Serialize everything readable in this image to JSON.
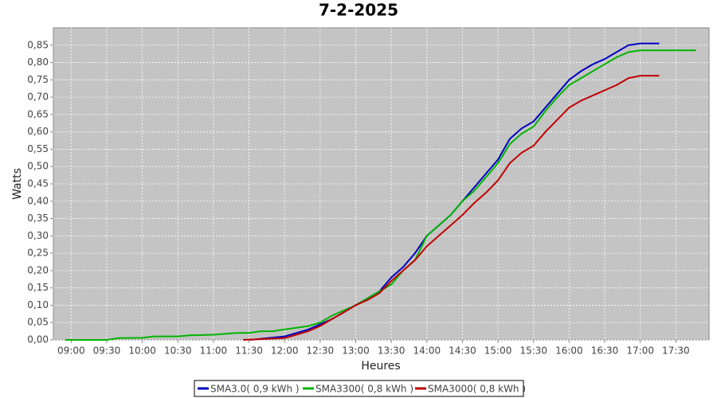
{
  "chart_data": {
    "type": "line",
    "title": "7-2-2025",
    "x_label": "Heures",
    "y_label": "Watts",
    "xlim": [
      525,
      1078
    ],
    "ylim": [
      0,
      0.9
    ],
    "grid": true,
    "legend": "bottom",
    "xticks": [
      {
        "value": 540,
        "label": "09:00"
      },
      {
        "value": 570,
        "label": "09:30"
      },
      {
        "value": 600,
        "label": "10:00"
      },
      {
        "value": 630,
        "label": "10:30"
      },
      {
        "value": 660,
        "label": "11:00"
      },
      {
        "value": 690,
        "label": "11:30"
      },
      {
        "value": 720,
        "label": "12:00"
      },
      {
        "value": 750,
        "label": "12:30"
      },
      {
        "value": 780,
        "label": "13:00"
      },
      {
        "value": 810,
        "label": "13:30"
      },
      {
        "value": 840,
        "label": "14:00"
      },
      {
        "value": 870,
        "label": "14:30"
      },
      {
        "value": 900,
        "label": "15:00"
      },
      {
        "value": 930,
        "label": "15:30"
      },
      {
        "value": 960,
        "label": "16:00"
      },
      {
        "value": 990,
        "label": "16:30"
      },
      {
        "value": 1020,
        "label": "17:00"
      },
      {
        "value": 1050,
        "label": "17:30"
      }
    ],
    "yticks": [
      {
        "value": 0,
        "label": "0,00"
      },
      {
        "value": 0.05,
        "label": "0,05"
      },
      {
        "value": 0.1,
        "label": "0,10"
      },
      {
        "value": 0.15,
        "label": "0,15"
      },
      {
        "value": 0.2,
        "label": "0,20"
      },
      {
        "value": 0.25,
        "label": "0,25"
      },
      {
        "value": 0.3,
        "label": "0,30"
      },
      {
        "value": 0.35,
        "label": "0,35"
      },
      {
        "value": 0.4,
        "label": "0,40"
      },
      {
        "value": 0.45,
        "label": "0,45"
      },
      {
        "value": 0.5,
        "label": "0,50"
      },
      {
        "value": 0.55,
        "label": "0,55"
      },
      {
        "value": 0.6,
        "label": "0,60"
      },
      {
        "value": 0.65,
        "label": "0,65"
      },
      {
        "value": 0.7,
        "label": "0,70"
      },
      {
        "value": 0.75,
        "label": "0,75"
      },
      {
        "value": 0.8,
        "label": "0,80"
      },
      {
        "value": 0.85,
        "label": "0,85"
      }
    ],
    "series": [
      {
        "name": "SMA3.0( 0,9 kWh )",
        "color": "#0000c0",
        "x": [
          691,
          720,
          730,
          740,
          750,
          760,
          770,
          780,
          790,
          800,
          810,
          820,
          830,
          840,
          850,
          860,
          870,
          880,
          890,
          900,
          910,
          920,
          930,
          940,
          950,
          960,
          970,
          980,
          990,
          1000,
          1010,
          1020,
          1036
        ],
        "values": [
          0,
          0.01,
          0.02,
          0.03,
          0.045,
          0.06,
          0.08,
          0.1,
          0.12,
          0.14,
          0.18,
          0.21,
          0.25,
          0.3,
          0.33,
          0.36,
          0.4,
          0.44,
          0.48,
          0.52,
          0.58,
          0.61,
          0.63,
          0.67,
          0.71,
          0.75,
          0.775,
          0.795,
          0.81,
          0.83,
          0.85,
          0.855,
          0.855
        ]
      },
      {
        "name": "SMA3300( 0,8 kWh )",
        "color": "#00b400",
        "x": [
          535,
          570,
          580,
          600,
          610,
          630,
          640,
          660,
          680,
          690,
          700,
          710,
          720,
          730,
          740,
          750,
          760,
          770,
          780,
          790,
          800,
          810,
          820,
          830,
          840,
          850,
          860,
          870,
          880,
          890,
          900,
          910,
          920,
          930,
          940,
          950,
          960,
          970,
          980,
          990,
          1000,
          1010,
          1020,
          1040,
          1067
        ],
        "values": [
          0,
          0,
          0.005,
          0.006,
          0.01,
          0.01,
          0.013,
          0.015,
          0.02,
          0.02,
          0.025,
          0.025,
          0.03,
          0.035,
          0.04,
          0.05,
          0.07,
          0.085,
          0.1,
          0.12,
          0.14,
          0.16,
          0.2,
          0.23,
          0.3,
          0.33,
          0.36,
          0.4,
          0.43,
          0.47,
          0.51,
          0.565,
          0.595,
          0.615,
          0.66,
          0.7,
          0.735,
          0.755,
          0.775,
          0.795,
          0.815,
          0.83,
          0.835,
          0.835,
          0.835
        ]
      },
      {
        "name": "SMA3000( 0,8 kWh )",
        "color": "#c00000",
        "x": [
          685,
          720,
          730,
          740,
          750,
          760,
          770,
          780,
          790,
          800,
          810,
          820,
          830,
          840,
          850,
          860,
          870,
          880,
          890,
          900,
          910,
          920,
          930,
          940,
          950,
          960,
          970,
          980,
          990,
          1000,
          1010,
          1020,
          1036
        ],
        "values": [
          0,
          0.005,
          0.015,
          0.025,
          0.04,
          0.06,
          0.08,
          0.1,
          0.115,
          0.135,
          0.17,
          0.2,
          0.23,
          0.27,
          0.3,
          0.33,
          0.36,
          0.395,
          0.425,
          0.46,
          0.51,
          0.54,
          0.56,
          0.6,
          0.635,
          0.67,
          0.69,
          0.705,
          0.72,
          0.735,
          0.755,
          0.762,
          0.762
        ]
      }
    ]
  }
}
